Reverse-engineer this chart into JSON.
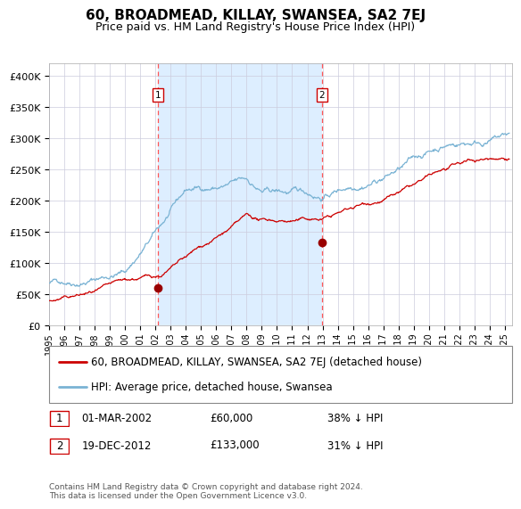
{
  "title": "60, BROADMEAD, KILLAY, SWANSEA, SA2 7EJ",
  "subtitle": "Price paid vs. HM Land Registry's House Price Index (HPI)",
  "ylabel_ticks": [
    "£0",
    "£50K",
    "£100K",
    "£150K",
    "£200K",
    "£250K",
    "£300K",
    "£350K",
    "£400K"
  ],
  "ytick_values": [
    0,
    50000,
    100000,
    150000,
    200000,
    250000,
    300000,
    350000,
    400000
  ],
  "ylim": [
    0,
    420000
  ],
  "xlim_start": 1995.0,
  "xlim_end": 2025.5,
  "sale1_date": 2002.167,
  "sale1_price": 60000,
  "sale1_label": "1",
  "sale2_date": 2012.97,
  "sale2_price": 133000,
  "sale2_label": "2",
  "shading_start": 2002.167,
  "shading_end": 2012.97,
  "legend_line1": "60, BROADMEAD, KILLAY, SWANSEA, SA2 7EJ (detached house)",
  "legend_line2": "HPI: Average price, detached house, Swansea",
  "annotation1_date": "01-MAR-2002",
  "annotation1_price": "£60,000",
  "annotation1_hpi": "38% ↓ HPI",
  "annotation2_date": "19-DEC-2012",
  "annotation2_price": "£133,000",
  "annotation2_hpi": "31% ↓ HPI",
  "footer": "Contains HM Land Registry data © Crown copyright and database right 2024.\nThis data is licensed under the Open Government Licence v3.0.",
  "hpi_color": "#7ab3d4",
  "price_color": "#cc0000",
  "shading_color": "#ddeeff",
  "vline_color": "#ff5555",
  "marker_color": "#990000",
  "background_color": "#ffffff",
  "grid_color": "#ccccdd",
  "title_fontsize": 11,
  "subtitle_fontsize": 9,
  "tick_fontsize": 8,
  "legend_fontsize": 8.5,
  "annotation_fontsize": 8.5,
  "footer_fontsize": 6.5
}
